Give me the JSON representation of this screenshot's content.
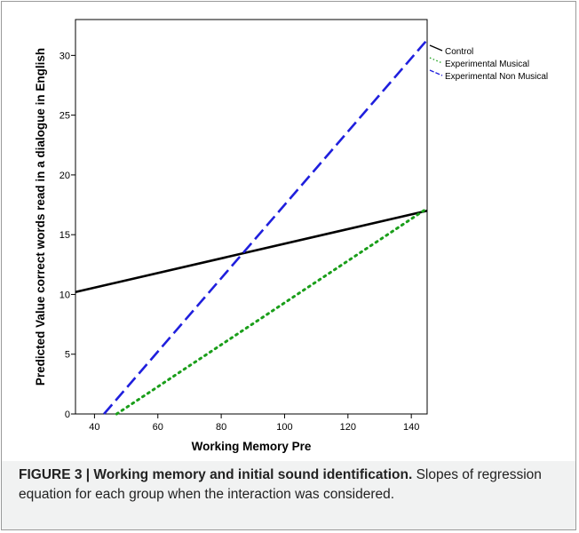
{
  "chart_data": {
    "type": "line",
    "title": "",
    "xlabel": "Working Memory Pre",
    "ylabel": "Predicted Value correct words read in a dialogue in English",
    "xlim": [
      34,
      145
    ],
    "ylim": [
      0,
      33
    ],
    "x_ticks": [
      40,
      60,
      80,
      100,
      120,
      140
    ],
    "y_ticks": [
      0,
      5,
      10,
      15,
      20,
      25,
      30
    ],
    "grid": false,
    "legend_position": "top-right",
    "series": [
      {
        "name": "Control",
        "color": "#000000",
        "dash": "solid",
        "points": [
          [
            34,
            10.2
          ],
          [
            145,
            17.0
          ]
        ]
      },
      {
        "name": "Experimental Musical",
        "color": "#1a9e1a",
        "dash": "dotted",
        "points": [
          [
            47,
            0
          ],
          [
            145,
            17.2
          ]
        ]
      },
      {
        "name": "Experimental Non Musical",
        "color": "#1f1fdd",
        "dash": "dashed",
        "points": [
          [
            43,
            0
          ],
          [
            145,
            31.3
          ]
        ]
      }
    ]
  },
  "caption": {
    "label": "FIGURE 3 | Working memory and initial sound identification.",
    "text": " Slopes of regression equation for each group when the interaction was considered."
  }
}
